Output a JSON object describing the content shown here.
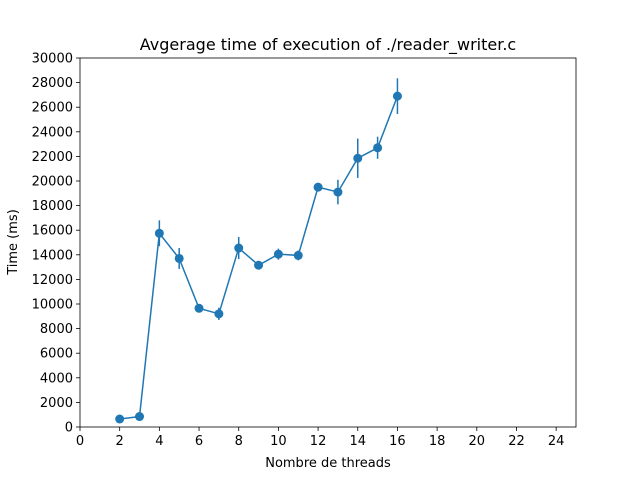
{
  "chart_data": {
    "type": "line",
    "title": "Avgerage time of execution of ./reader_writer.c",
    "xlabel": "Nombre de threads",
    "ylabel": "Time (ms)",
    "xlim": [
      0,
      25
    ],
    "ylim": [
      0,
      30000
    ],
    "xticks": [
      0,
      2,
      4,
      6,
      8,
      10,
      12,
      14,
      16,
      18,
      20,
      22,
      24
    ],
    "yticks": [
      0,
      2000,
      4000,
      6000,
      8000,
      10000,
      12000,
      14000,
      16000,
      18000,
      20000,
      22000,
      24000,
      26000,
      28000,
      30000
    ],
    "grid": false,
    "color": "#1f77b4",
    "series": [
      {
        "x": [
          2,
          3,
          4,
          5,
          6,
          7,
          8,
          9,
          10,
          11,
          12,
          13,
          14,
          15,
          16
        ],
        "y": [
          650,
          850,
          15750,
          13700,
          9650,
          9200,
          14550,
          13150,
          14050,
          13950,
          19500,
          19100,
          21850,
          22700,
          26900
        ],
        "yerr": [
          150,
          200,
          1050,
          850,
          300,
          500,
          900,
          350,
          450,
          400,
          300,
          1000,
          1600,
          900,
          1450
        ]
      }
    ]
  }
}
